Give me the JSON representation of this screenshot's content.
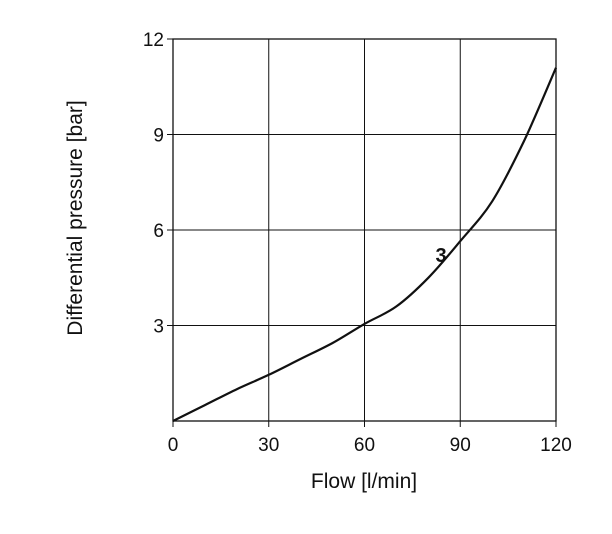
{
  "chart_data": {
    "type": "line",
    "xlabel": "Flow [l/min]",
    "ylabel": "Differential pressure [bar]",
    "xlim": [
      0,
      120
    ],
    "ylim": [
      0,
      12
    ],
    "x_ticks": [
      0,
      30,
      60,
      90,
      120
    ],
    "y_ticks": [
      0,
      3,
      6,
      9,
      12
    ],
    "x_tick_labels": [
      "0",
      "30",
      "60",
      "90",
      "120"
    ],
    "y_tick_labels": [
      "",
      "3",
      "6",
      "9",
      "12"
    ],
    "grid": true,
    "series": [
      {
        "name": "3",
        "x": [
          0,
          10,
          20,
          30,
          40,
          50,
          60,
          70,
          80,
          90,
          100,
          110,
          120
        ],
        "y": [
          0,
          0.5,
          1.0,
          1.45,
          1.95,
          2.45,
          3.05,
          3.6,
          4.5,
          5.65,
          6.9,
          8.8,
          11.1
        ]
      }
    ]
  }
}
